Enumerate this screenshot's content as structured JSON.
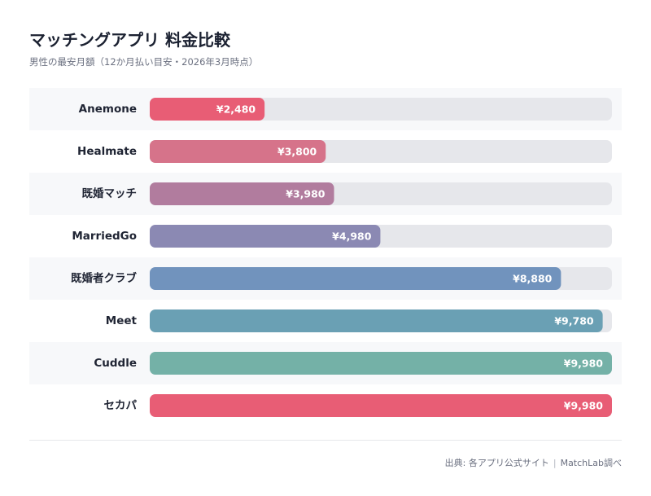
{
  "header": {
    "title": "マッチングアプリ 料金比較",
    "subtitle": "男性の最安月額（12か月払い目安・2026年3月時点）"
  },
  "footer": {
    "source": "出典: 各アプリ公式サイト",
    "separator": "|",
    "credit": "MatchLab調べ"
  },
  "chart_data": {
    "type": "bar",
    "orientation": "horizontal",
    "title": "マッチングアプリ 料金比較",
    "subtitle": "男性の最安月額（12か月払い目安・2026年3月時点）",
    "categories": [
      "Anemone",
      "Healmate",
      "既婚マッチ",
      "MarriedGo",
      "既婚者クラブ",
      "Meet",
      "Cuddle",
      "セカパ"
    ],
    "values": [
      2480,
      3800,
      3980,
      4980,
      8880,
      9780,
      9980,
      9980
    ],
    "value_labels": [
      "¥2,480",
      "¥3,800",
      "¥3,980",
      "¥4,980",
      "¥8,880",
      "¥9,780",
      "¥9,980",
      "¥9,980"
    ],
    "bar_colors": [
      "#e85d75",
      "#d6738a",
      "#b17c9e",
      "#8b89b3",
      "#7193bd",
      "#6aa0b4",
      "#74b1a7",
      "#e85d75"
    ],
    "xlim": [
      0,
      9980
    ],
    "grid": false,
    "legend": "none"
  },
  "colors": {
    "track": "#e6e7eb",
    "stripe": "#f7f8fa"
  }
}
